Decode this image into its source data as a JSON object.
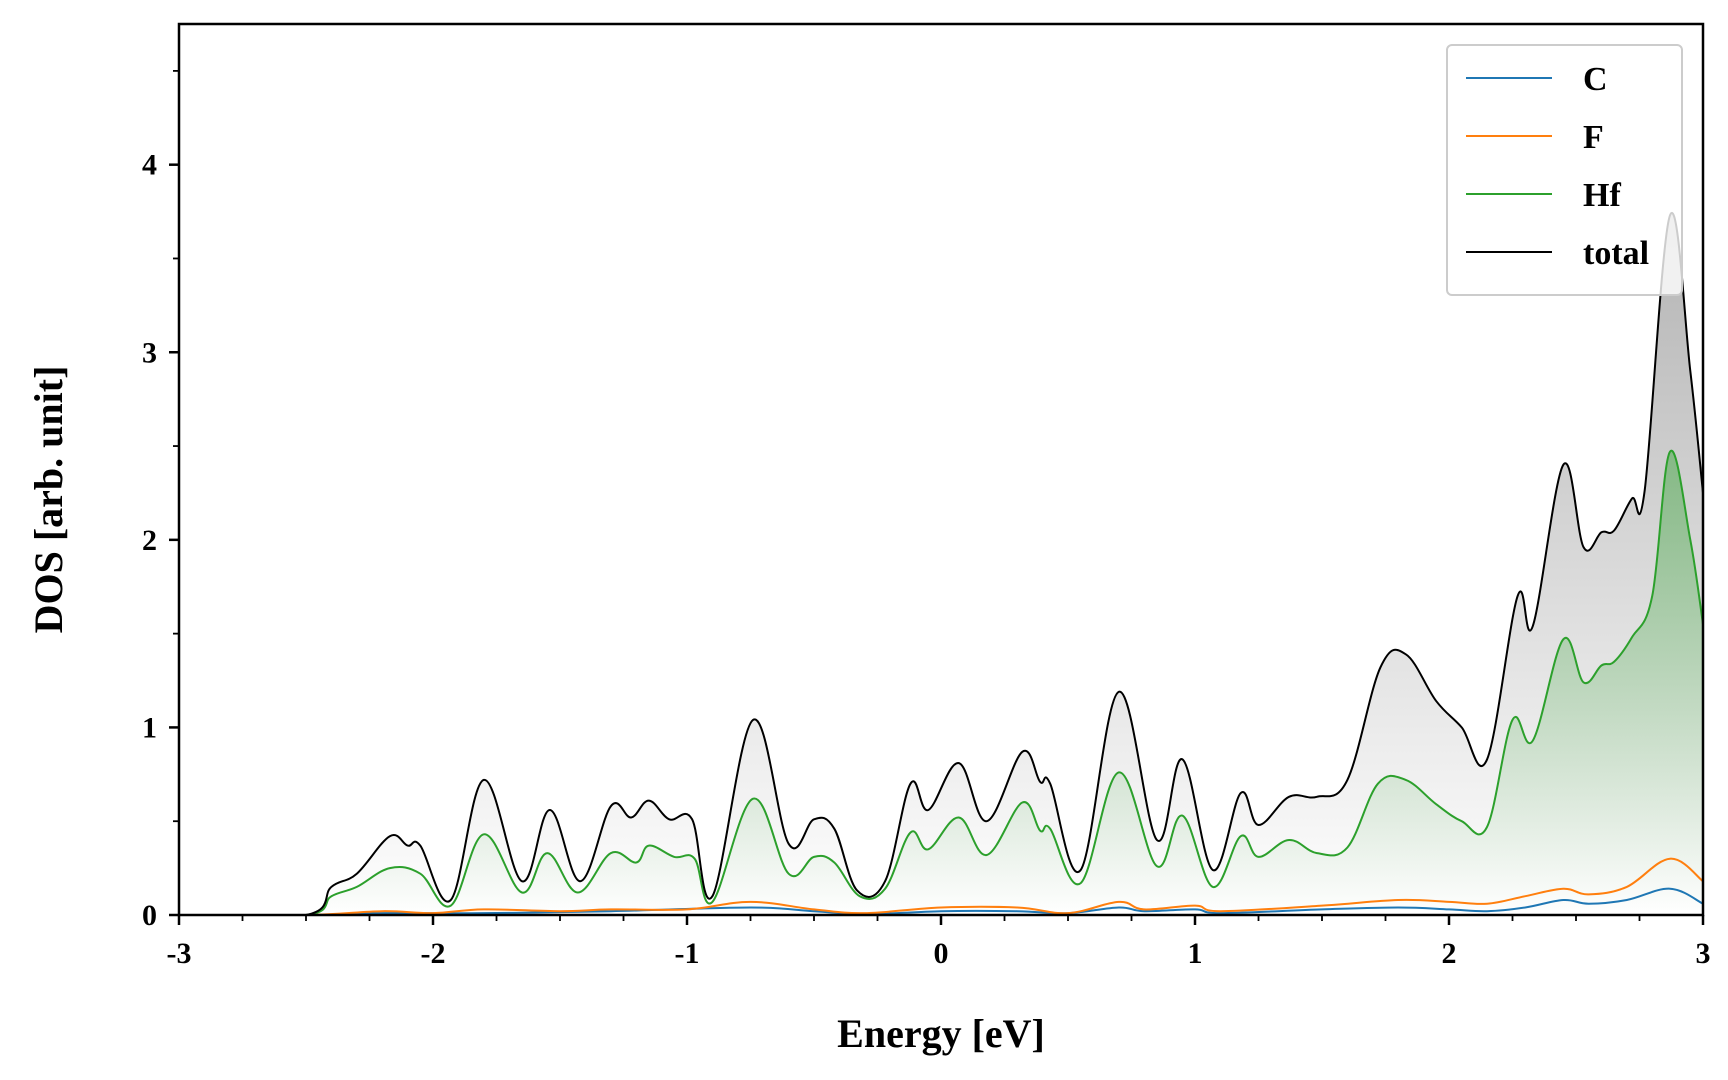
{
  "chart_data": {
    "type": "line",
    "xlabel": "Energy [eV]",
    "ylabel": "DOS [arb. unit]",
    "xlim": [
      -3,
      3
    ],
    "ylim": [
      0,
      4.75
    ],
    "x_ticks": [
      -3,
      -2,
      -1,
      0,
      1,
      2,
      3
    ],
    "x_tick_labels": [
      "-3",
      "-2",
      "-1",
      "0",
      "1",
      "2",
      "3"
    ],
    "y_ticks": [
      0,
      1,
      2,
      3,
      4
    ],
    "y_tick_labels": [
      "0",
      "1",
      "2",
      "3",
      "4"
    ],
    "grid": false,
    "legend_position": "top-right",
    "series": [
      {
        "name": "C",
        "color": "#1f77b4",
        "fill": false,
        "points": [
          [
            -3,
            0
          ],
          [
            -2.5,
            0
          ],
          [
            -2.2,
            0.01
          ],
          [
            -1.8,
            0.01
          ],
          [
            -1.3,
            0.02
          ],
          [
            -0.75,
            0.04
          ],
          [
            -0.5,
            0.02
          ],
          [
            -0.3,
            0.005
          ],
          [
            0,
            0.02
          ],
          [
            0.3,
            0.02
          ],
          [
            0.5,
            0.01
          ],
          [
            0.7,
            0.04
          ],
          [
            0.8,
            0.02
          ],
          [
            1,
            0.03
          ],
          [
            1.1,
            0.01
          ],
          [
            1.5,
            0.03
          ],
          [
            1.8,
            0.04
          ],
          [
            2,
            0.03
          ],
          [
            2.15,
            0.02
          ],
          [
            2.3,
            0.04
          ],
          [
            2.45,
            0.08
          ],
          [
            2.55,
            0.06
          ],
          [
            2.7,
            0.08
          ],
          [
            2.87,
            0.14
          ],
          [
            3,
            0.06
          ]
        ]
      },
      {
        "name": "F",
        "color": "#ff7f0e",
        "fill": false,
        "points": [
          [
            -3,
            0
          ],
          [
            -2.5,
            0
          ],
          [
            -2.2,
            0.02
          ],
          [
            -2,
            0.01
          ],
          [
            -1.8,
            0.03
          ],
          [
            -1.5,
            0.02
          ],
          [
            -1.3,
            0.03
          ],
          [
            -1,
            0.03
          ],
          [
            -0.75,
            0.07
          ],
          [
            -0.5,
            0.03
          ],
          [
            -0.3,
            0.01
          ],
          [
            0,
            0.04
          ],
          [
            0.3,
            0.04
          ],
          [
            0.5,
            0.01
          ],
          [
            0.7,
            0.07
          ],
          [
            0.8,
            0.03
          ],
          [
            1,
            0.05
          ],
          [
            1.1,
            0.02
          ],
          [
            1.5,
            0.05
          ],
          [
            1.8,
            0.08
          ],
          [
            2,
            0.07
          ],
          [
            2.15,
            0.06
          ],
          [
            2.3,
            0.1
          ],
          [
            2.45,
            0.14
          ],
          [
            2.55,
            0.11
          ],
          [
            2.7,
            0.15
          ],
          [
            2.87,
            0.3
          ],
          [
            3,
            0.18
          ]
        ]
      },
      {
        "name": "Hf",
        "color": "#2ca02c",
        "fill": true,
        "fill_color": "#2ca02c",
        "points": [
          [
            -3,
            0
          ],
          [
            -2.5,
            0
          ],
          [
            -2.4,
            0.1
          ],
          [
            -2.3,
            0.15
          ],
          [
            -2.17,
            0.25
          ],
          [
            -2.05,
            0.22
          ],
          [
            -1.93,
            0.05
          ],
          [
            -1.8,
            0.43
          ],
          [
            -1.65,
            0.12
          ],
          [
            -1.55,
            0.33
          ],
          [
            -1.43,
            0.12
          ],
          [
            -1.3,
            0.33
          ],
          [
            -1.2,
            0.28
          ],
          [
            -1.15,
            0.37
          ],
          [
            -1.05,
            0.31
          ],
          [
            -0.97,
            0.3
          ],
          [
            -0.9,
            0.07
          ],
          [
            -0.74,
            0.62
          ],
          [
            -0.6,
            0.22
          ],
          [
            -0.5,
            0.31
          ],
          [
            -0.42,
            0.28
          ],
          [
            -0.32,
            0.1
          ],
          [
            -0.22,
            0.14
          ],
          [
            -0.12,
            0.44
          ],
          [
            -0.05,
            0.35
          ],
          [
            0.07,
            0.52
          ],
          [
            0.18,
            0.32
          ],
          [
            0.32,
            0.6
          ],
          [
            0.39,
            0.45
          ],
          [
            0.43,
            0.46
          ],
          [
            0.55,
            0.17
          ],
          [
            0.7,
            0.76
          ],
          [
            0.85,
            0.26
          ],
          [
            0.95,
            0.53
          ],
          [
            1.07,
            0.15
          ],
          [
            1.18,
            0.42
          ],
          [
            1.25,
            0.31
          ],
          [
            1.37,
            0.4
          ],
          [
            1.48,
            0.33
          ],
          [
            1.6,
            0.36
          ],
          [
            1.72,
            0.7
          ],
          [
            1.83,
            0.72
          ],
          [
            1.95,
            0.59
          ],
          [
            2.05,
            0.5
          ],
          [
            2.15,
            0.47
          ],
          [
            2.25,
            1.04
          ],
          [
            2.33,
            0.93
          ],
          [
            2.45,
            1.47
          ],
          [
            2.53,
            1.24
          ],
          [
            2.6,
            1.33
          ],
          [
            2.65,
            1.35
          ],
          [
            2.72,
            1.48
          ],
          [
            2.8,
            1.7
          ],
          [
            2.87,
            2.47
          ],
          [
            2.95,
            2.0
          ],
          [
            3,
            1.55
          ]
        ]
      },
      {
        "name": "total",
        "color": "#000000",
        "fill": true,
        "fill_color": "#808080",
        "points": [
          [
            -3,
            0
          ],
          [
            -2.5,
            0
          ],
          [
            -2.4,
            0.15
          ],
          [
            -2.3,
            0.22
          ],
          [
            -2.17,
            0.42
          ],
          [
            -2.1,
            0.37
          ],
          [
            -2.05,
            0.37
          ],
          [
            -1.93,
            0.08
          ],
          [
            -1.8,
            0.72
          ],
          [
            -1.65,
            0.18
          ],
          [
            -1.54,
            0.56
          ],
          [
            -1.42,
            0.18
          ],
          [
            -1.3,
            0.58
          ],
          [
            -1.22,
            0.52
          ],
          [
            -1.15,
            0.61
          ],
          [
            -1.07,
            0.51
          ],
          [
            -0.98,
            0.51
          ],
          [
            -0.9,
            0.1
          ],
          [
            -0.74,
            1.04
          ],
          [
            -0.6,
            0.38
          ],
          [
            -0.5,
            0.51
          ],
          [
            -0.42,
            0.46
          ],
          [
            -0.33,
            0.13
          ],
          [
            -0.22,
            0.18
          ],
          [
            -0.12,
            0.7
          ],
          [
            -0.05,
            0.56
          ],
          [
            0.07,
            0.81
          ],
          [
            0.18,
            0.5
          ],
          [
            0.32,
            0.87
          ],
          [
            0.39,
            0.71
          ],
          [
            0.43,
            0.7
          ],
          [
            0.55,
            0.24
          ],
          [
            0.7,
            1.19
          ],
          [
            0.85,
            0.4
          ],
          [
            0.95,
            0.83
          ],
          [
            1.07,
            0.24
          ],
          [
            1.18,
            0.65
          ],
          [
            1.25,
            0.48
          ],
          [
            1.37,
            0.63
          ],
          [
            1.48,
            0.63
          ],
          [
            1.6,
            0.72
          ],
          [
            1.73,
            1.32
          ],
          [
            1.83,
            1.39
          ],
          [
            1.95,
            1.14
          ],
          [
            2.05,
            1.0
          ],
          [
            2.15,
            0.83
          ],
          [
            2.27,
            1.7
          ],
          [
            2.33,
            1.54
          ],
          [
            2.45,
            2.4
          ],
          [
            2.53,
            1.96
          ],
          [
            2.6,
            2.04
          ],
          [
            2.65,
            2.05
          ],
          [
            2.72,
            2.22
          ],
          [
            2.77,
            2.26
          ],
          [
            2.87,
            3.73
          ],
          [
            2.95,
            2.9
          ],
          [
            3,
            2.25
          ]
        ]
      }
    ]
  }
}
